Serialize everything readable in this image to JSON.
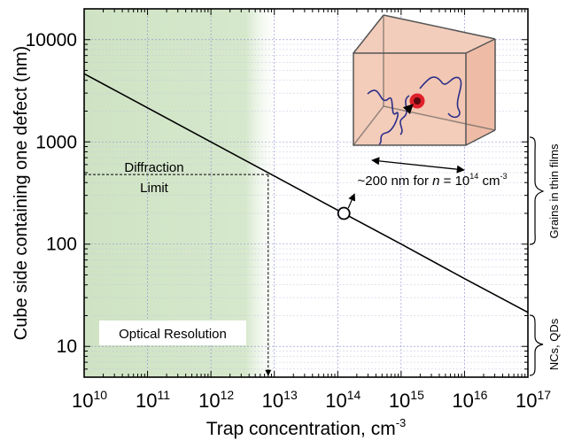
{
  "chart_data": {
    "type": "line",
    "x_scale": "log",
    "y_scale": "log",
    "xlabel": "Trap concentration, cm",
    "xlabel_sup": "-3",
    "ylabel": "Cube side containing one defect (nm)",
    "xlim": [
      10000000000.0,
      1e+17
    ],
    "ylim": [
      5,
      20000
    ],
    "x_ticks": [
      {
        "base": "10",
        "exp": "10"
      },
      {
        "base": "10",
        "exp": "11"
      },
      {
        "base": "10",
        "exp": "12"
      },
      {
        "base": "10",
        "exp": "13"
      },
      {
        "base": "10",
        "exp": "14"
      },
      {
        "base": "10",
        "exp": "15"
      },
      {
        "base": "10",
        "exp": "16"
      },
      {
        "base": "10",
        "exp": "17"
      }
    ],
    "y_ticks": [
      "10",
      "100",
      "1000",
      "10000"
    ],
    "grid": true,
    "series": [
      {
        "x": [
          10000000000.0,
          100000000000.0,
          1000000000000.0,
          10000000000000.0,
          100000000000000.0,
          1000000000000000.0,
          1e+16,
          1e+17
        ],
        "y": [
          4642,
          2154,
          1000,
          464,
          215,
          100,
          46,
          21.5
        ]
      }
    ],
    "highlight_point": {
      "x": 125000000000000.0,
      "y": 200
    },
    "diffraction_limit": {
      "x": 8000000000000.0,
      "y": 480
    },
    "shaded_region": {
      "x_from": 10000000000.0,
      "x_to": 10000000000000.0,
      "color": "#cfe3c4"
    },
    "annotations": {
      "diffraction_line1": "Diffraction",
      "diffraction_line2": "Limit",
      "optical_resolution": "Optical Resolution",
      "cube_label_prefix": "~200 nm for ",
      "cube_label_n": "n",
      "cube_label_mid": " = 10",
      "cube_label_exp": "14",
      "cube_label_unit": " cm",
      "cube_label_unit_exp": "-3",
      "bracket_grains": "Grains in thin films",
      "bracket_ncs": "NCs, QDs"
    },
    "colors": {
      "line": "#000000",
      "shade": "#cfe3c4",
      "cube": "#f0c4b0",
      "trajectory": "#2b2f8a",
      "defect": "#e0202a"
    }
  }
}
